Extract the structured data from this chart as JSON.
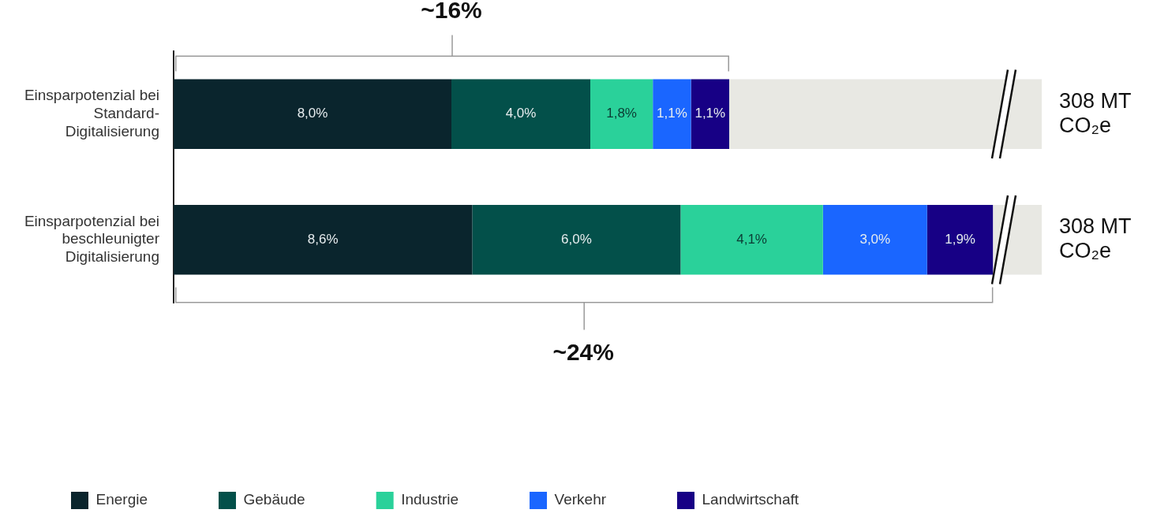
{
  "chart_data": {
    "type": "bar",
    "orientation": "horizontal",
    "stacked": true,
    "categories": [
      "Einsparpotenzial bei Standard-Digitalisierung",
      "Einsparpotenzial bei beschleunigter Digitalisierung"
    ],
    "series": [
      {
        "name": "Energie",
        "color": "#0a252d",
        "values": [
          8.0,
          8.6
        ],
        "value_labels": [
          "8,0%",
          "8,6%"
        ]
      },
      {
        "name": "Gebäude",
        "color": "#03504a",
        "values": [
          4.0,
          6.0
        ],
        "value_labels": [
          "4,0%",
          "6,0%"
        ]
      },
      {
        "name": "Industrie",
        "color": "#2ad19a",
        "values": [
          1.8,
          4.1
        ],
        "value_labels": [
          "1,8%",
          "4,1%"
        ]
      },
      {
        "name": "Verkehr",
        "color": "#1a66ff",
        "values": [
          1.1,
          3.0
        ],
        "value_labels": [
          "1,1%",
          "3,0%"
        ]
      },
      {
        "name": "Landwirtschaft",
        "color": "#170085",
        "values": [
          1.1,
          1.9
        ],
        "value_labels": [
          "1,1%",
          "1,9%"
        ]
      }
    ],
    "xlim": [
      0,
      25
    ],
    "tick_labels": "y",
    "legend": "bottom",
    "annotations": [
      "~16%",
      "~24%",
      "308 MT CO₂e",
      "308 MT CO₂e"
    ]
  }
}
